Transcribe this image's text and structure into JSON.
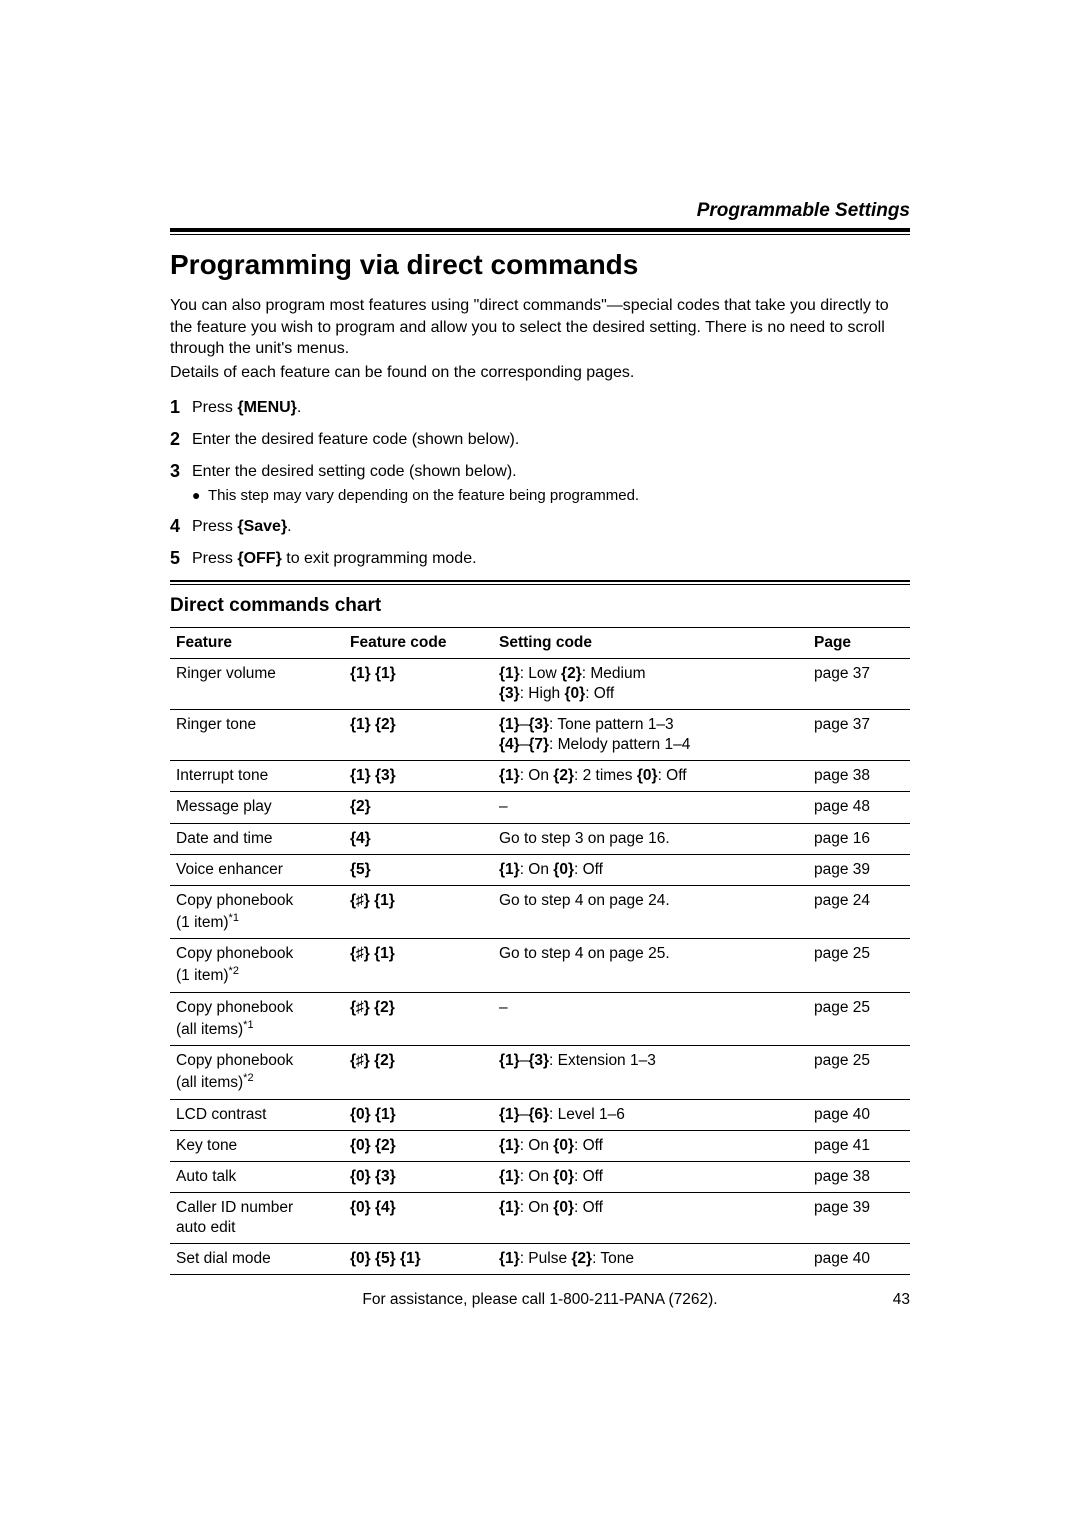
{
  "header": {
    "section": "Programmable Settings"
  },
  "title": "Programming via direct commands",
  "intro": [
    "You can also program most features using \"direct commands\"—special codes that take you directly to the feature you wish to program and allow you to select the desired setting. There is no need to scroll through the unit's menus.",
    "Details of each feature can be found on the corresponding pages."
  ],
  "steps": [
    {
      "num": "1",
      "pre": "Press ",
      "bold": "{MENU}",
      "post": "."
    },
    {
      "num": "2",
      "text": "Enter the desired feature code (shown below)."
    },
    {
      "num": "3",
      "text": "Enter the desired setting code (shown below).",
      "sub": "This step may vary depending on the feature being programmed."
    },
    {
      "num": "4",
      "pre": "Press ",
      "bold": "{Save}",
      "post": "."
    },
    {
      "num": "5",
      "pre": "Press ",
      "bold": "{OFF}",
      "post": " to exit programming mode."
    }
  ],
  "chart_title": "Direct commands chart",
  "table": {
    "headers": [
      "Feature",
      "Feature code",
      "Setting code",
      "Page"
    ],
    "rows": [
      {
        "feature": "Ringer volume",
        "code_html": "<b>{1} {1}</b>",
        "setting_html": "<b>{1}</b>: Low <b>{2}</b>: Medium<br><b>{3}</b>: High <b>{0}</b>: Off",
        "page": "page 37"
      },
      {
        "feature": "Ringer tone",
        "code_html": "<b>{1} {2}</b>",
        "setting_html": "<b>{1}</b>–<b>{3}</b>: Tone pattern 1–3<br><b>{4}</b>–<b>{7}</b>: Melody pattern 1–4",
        "page": "page 37"
      },
      {
        "feature": "Interrupt tone",
        "code_html": "<b>{1} {3}</b>",
        "setting_html": "<b>{1}</b>: On <b>{2}</b>: 2 times <b>{0}</b>: Off",
        "page": "page 38"
      },
      {
        "feature": "Message play",
        "code_html": "<b>{2}</b>",
        "setting_html": "–",
        "setting_center": true,
        "page": "page 48"
      },
      {
        "feature": "Date and time",
        "code_html": "<b>{4}</b>",
        "setting_html": "Go to step 3 on page 16.",
        "page": "page 16"
      },
      {
        "feature": "Voice enhancer",
        "code_html": "<b>{5}</b>",
        "setting_html": "<b>{1}</b>: On <b>{0}</b>: Off",
        "page": "page 39"
      },
      {
        "feature_html": "Copy phonebook<br>(1 item)<span class=\"footnote-sup\">*1</span>",
        "code_html": "<b>{<span class=\"hash\">♯</span>} {1}</b>",
        "setting_html": "Go to step 4 on page 24.",
        "page": "page 24"
      },
      {
        "feature_html": "Copy phonebook<br>(1 item)<span class=\"footnote-sup\">*2</span>",
        "code_html": "<b>{<span class=\"hash\">♯</span>} {1}</b>",
        "setting_html": "Go to step 4 on page 25.",
        "page": "page 25"
      },
      {
        "feature_html": "Copy phonebook<br>(all items)<span class=\"footnote-sup\">*1</span>",
        "code_html": "<b>{<span class=\"hash\">♯</span>} {2}</b>",
        "setting_html": "–",
        "setting_center": true,
        "page": "page 25"
      },
      {
        "feature_html": "Copy phonebook<br>(all items)<span class=\"footnote-sup\">*2</span>",
        "code_html": "<b>{<span class=\"hash\">♯</span>} {2}</b>",
        "setting_html": "<b>{1}</b>–<b>{3}</b>: Extension 1–3",
        "page": "page 25"
      },
      {
        "feature": "LCD contrast",
        "code_html": "<b>{0} {1}</b>",
        "setting_html": "<b>{1}</b>–<b>{6}</b>: Level 1–6",
        "page": "page 40"
      },
      {
        "feature": "Key tone",
        "code_html": "<b>{0} {2}</b>",
        "setting_html": "<b>{1}</b>: On <b>{0}</b>: Off",
        "page": "page 41"
      },
      {
        "feature": "Auto talk",
        "code_html": "<b>{0} {3}</b>",
        "setting_html": "<b>{1}</b>: On <b>{0}</b>: Off",
        "page": "page 38"
      },
      {
        "feature_html": "Caller ID number<br>auto edit",
        "code_html": "<b>{0} {4}</b>",
        "setting_html": "<b>{1}</b>: On <b>{0}</b>: Off",
        "page": "page 39"
      },
      {
        "feature": "Set dial mode",
        "code_html": "<b>{0} {5} {1}</b>",
        "setting_html": "<b>{1}</b>: Pulse <b>{2}</b>: Tone",
        "page": "page 40"
      }
    ]
  },
  "footer": {
    "assist": "For assistance, please call 1-800-211-PANA (7262).",
    "page_number": "43"
  }
}
